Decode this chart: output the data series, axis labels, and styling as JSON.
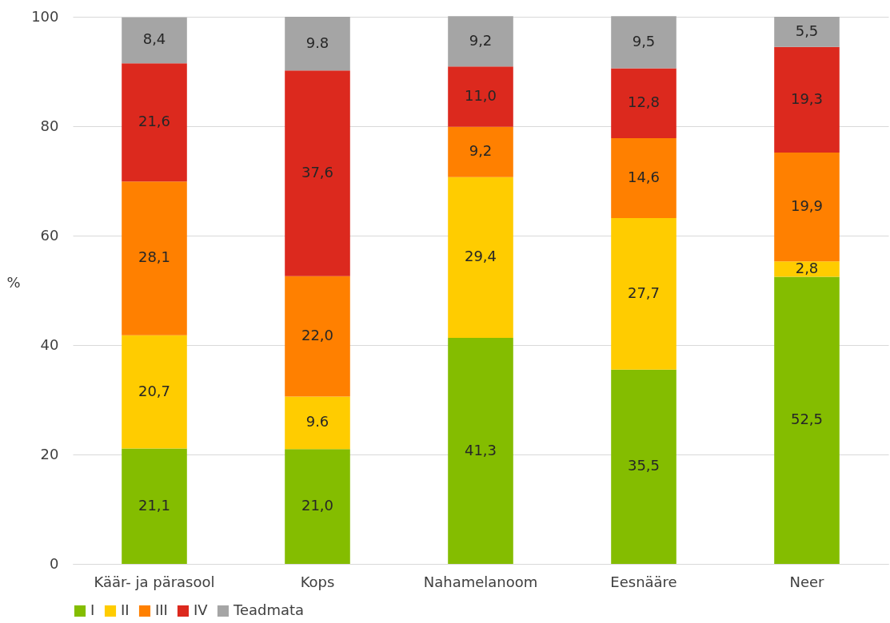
{
  "chart_data": {
    "type": "bar",
    "stacked": true,
    "ylabel": "%",
    "categories": [
      "Käär- ja pärasool",
      "Kops",
      "Nahamelanoom",
      "Eesnääre",
      "Neer"
    ],
    "series": [
      {
        "name": "I",
        "color": "#84bd00",
        "values": [
          21.1,
          21.0,
          41.3,
          35.5,
          52.5
        ],
        "value_labels": [
          "21,1",
          "21,0",
          "41,3",
          "35,5",
          "52,5"
        ]
      },
      {
        "name": "II",
        "color": "#ffcc00",
        "values": [
          20.7,
          9.6,
          29.4,
          27.7,
          2.8
        ],
        "value_labels": [
          "20,7",
          "9.6",
          "29,4",
          "27,7",
          "2,8"
        ]
      },
      {
        "name": "III",
        "color": "#ff8000",
        "values": [
          28.1,
          22.0,
          9.2,
          14.6,
          19.9
        ],
        "value_labels": [
          "28,1",
          "22,0",
          "9,2",
          "14,6",
          "19,9"
        ]
      },
      {
        "name": "IV",
        "color": "#dc291e",
        "values": [
          21.6,
          37.6,
          11.0,
          12.8,
          19.3
        ],
        "value_labels": [
          "21,6",
          "37,6",
          "11,0",
          "12,8",
          "19,3"
        ]
      },
      {
        "name": "Teadmata",
        "color": "#a5a5a5",
        "values": [
          8.4,
          9.8,
          9.2,
          9.5,
          5.5
        ],
        "value_labels": [
          "8,4",
          "9.8",
          "9,2",
          "9,5",
          "5,5"
        ]
      }
    ],
    "ylim": [
      0,
      100
    ],
    "yticks": [
      0,
      20,
      40,
      60,
      80,
      100
    ],
    "grid": "y",
    "legend": "bottom"
  }
}
